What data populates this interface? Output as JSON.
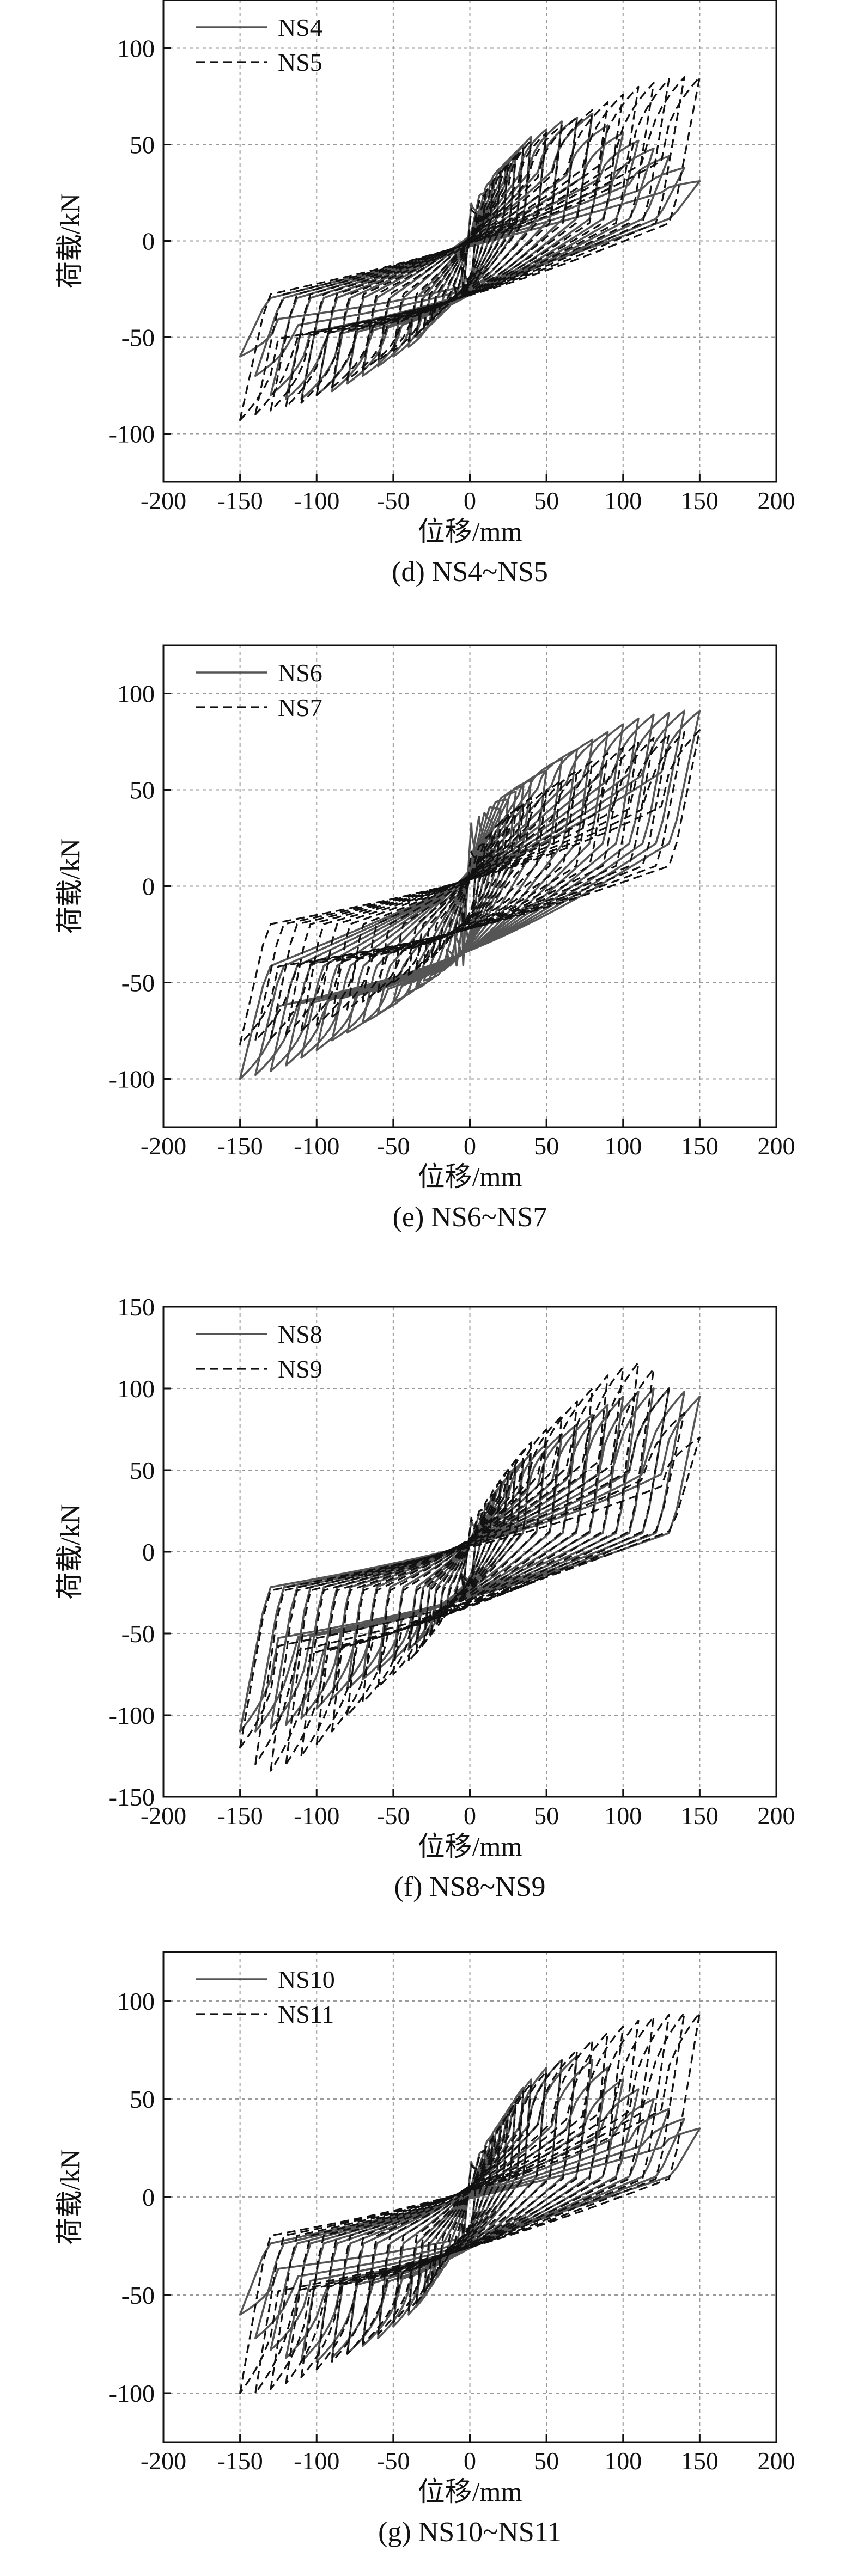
{
  "chart_data": [
    {
      "type": "line",
      "caption": "(d) NS4~NS5",
      "xlabel": "位移/mm",
      "ylabel": "荷载/kN",
      "xlim": [
        -200,
        200
      ],
      "ylim": [
        -125,
        125
      ],
      "xticks": [
        -200,
        -150,
        -100,
        -50,
        0,
        50,
        100,
        150,
        200
      ],
      "yticks": [
        -100,
        -50,
        0,
        50,
        100
      ],
      "grid": true,
      "legend_position": "top-left",
      "series": [
        {
          "name": "NS4",
          "style": "solid",
          "color": "#555555",
          "amplitudes": [
            5,
            10,
            15,
            20,
            25,
            30,
            35,
            40,
            50,
            60,
            70,
            80,
            90,
            100,
            110,
            120,
            130,
            140,
            150
          ],
          "peaks": [
            15,
            25,
            32,
            38,
            42,
            46,
            50,
            54,
            58,
            62,
            64,
            66,
            60,
            56,
            52,
            48,
            44,
            38,
            31
          ],
          "peaks_neg": [
            -15,
            -25,
            -32,
            -38,
            -42,
            -46,
            -50,
            -55,
            -60,
            -65,
            -70,
            -74,
            -78,
            -80,
            -82,
            -82,
            -80,
            -70,
            -60
          ],
          "shoulder": 22,
          "shoulder_neg": -30
        },
        {
          "name": "NS5",
          "style": "dashed",
          "color": "#111111",
          "amplitudes": [
            5,
            10,
            15,
            20,
            25,
            30,
            35,
            40,
            50,
            60,
            70,
            80,
            90,
            100,
            110,
            120,
            130,
            140,
            150
          ],
          "peaks": [
            14,
            24,
            30,
            36,
            40,
            44,
            48,
            52,
            56,
            60,
            64,
            68,
            72,
            76,
            80,
            82,
            84,
            85,
            85
          ],
          "peaks_neg": [
            -14,
            -24,
            -30,
            -36,
            -40,
            -44,
            -48,
            -52,
            -57,
            -62,
            -67,
            -72,
            -76,
            -80,
            -84,
            -86,
            -88,
            -90,
            -93
          ],
          "shoulder": 18,
          "shoulder_neg": -28
        }
      ]
    },
    {
      "type": "line",
      "caption": "(e) NS6~NS7",
      "xlabel": "位移/mm",
      "ylabel": "荷载/kN",
      "xlim": [
        -200,
        200
      ],
      "ylim": [
        -125,
        125
      ],
      "xticks": [
        -200,
        -150,
        -100,
        -50,
        0,
        50,
        100,
        150,
        200
      ],
      "yticks": [
        -100,
        -50,
        0,
        50,
        100
      ],
      "grid": true,
      "legend_position": "top-left",
      "series": [
        {
          "name": "NS6",
          "style": "solid",
          "color": "#555555",
          "amplitudes": [
            5,
            10,
            15,
            20,
            25,
            30,
            35,
            40,
            50,
            60,
            70,
            80,
            90,
            100,
            110,
            120,
            130,
            140,
            150
          ],
          "peaks": [
            15,
            25,
            33,
            40,
            45,
            49,
            52,
            55,
            60,
            66,
            71,
            76,
            80,
            84,
            87,
            89,
            90,
            91,
            91
          ],
          "peaks_neg": [
            -15,
            -25,
            -33,
            -40,
            -45,
            -49,
            -52,
            -55,
            -60,
            -66,
            -71,
            -76,
            -80,
            -85,
            -89,
            -93,
            -96,
            -98,
            -100
          ],
          "shoulder": 42,
          "shoulder_neg": -42
        },
        {
          "name": "NS7",
          "style": "dashed",
          "color": "#111111",
          "amplitudes": [
            5,
            10,
            15,
            20,
            25,
            30,
            35,
            40,
            50,
            60,
            70,
            80,
            90,
            100,
            110,
            120,
            130,
            140,
            150
          ],
          "peaks": [
            14,
            22,
            28,
            33,
            37,
            40,
            43,
            46,
            50,
            55,
            60,
            65,
            69,
            72,
            75,
            77,
            79,
            80,
            81
          ],
          "peaks_neg": [
            -14,
            -22,
            -28,
            -33,
            -37,
            -40,
            -43,
            -46,
            -50,
            -55,
            -60,
            -64,
            -68,
            -72,
            -75,
            -77,
            -79,
            -80,
            -82
          ],
          "shoulder": 20,
          "shoulder_neg": -20
        }
      ]
    },
    {
      "type": "line",
      "caption": "(f) NS8~NS9",
      "xlabel": "位移/mm",
      "ylabel": "荷载/kN",
      "xlim": [
        -200,
        200
      ],
      "ylim": [
        -150,
        150
      ],
      "xticks": [
        -200,
        -150,
        -100,
        -50,
        0,
        50,
        100,
        150,
        200
      ],
      "yticks": [
        -150,
        -100,
        -50,
        0,
        50,
        100,
        150
      ],
      "grid": true,
      "legend_position": "top-left",
      "series": [
        {
          "name": "NS8",
          "style": "solid",
          "color": "#555555",
          "amplitudes": [
            5,
            10,
            15,
            20,
            25,
            30,
            35,
            40,
            50,
            60,
            70,
            80,
            90,
            100,
            110,
            120,
            130,
            140,
            150
          ],
          "peaks": [
            14,
            24,
            32,
            40,
            46,
            52,
            56,
            60,
            66,
            72,
            78,
            84,
            90,
            95,
            98,
            100,
            100,
            98,
            95
          ],
          "peaks_neg": [
            -14,
            -24,
            -32,
            -40,
            -46,
            -52,
            -56,
            -60,
            -66,
            -72,
            -78,
            -84,
            -90,
            -96,
            -102,
            -106,
            -108,
            -110,
            -110
          ],
          "shoulder": 22,
          "shoulder_neg": -22
        },
        {
          "name": "NS9",
          "style": "dashed",
          "color": "#111111",
          "amplitudes": [
            5,
            10,
            15,
            20,
            25,
            30,
            35,
            40,
            50,
            60,
            70,
            80,
            90,
            100,
            110,
            120,
            130,
            140,
            150
          ],
          "peaks": [
            15,
            26,
            35,
            43,
            50,
            56,
            62,
            67,
            75,
            83,
            92,
            100,
            108,
            113,
            116,
            112,
            100,
            85,
            70
          ],
          "peaks_neg": [
            -15,
            -26,
            -35,
            -43,
            -50,
            -56,
            -62,
            -67,
            -75,
            -83,
            -92,
            -100,
            -110,
            -118,
            -125,
            -130,
            -134,
            -130,
            -120
          ],
          "shoulder": 24,
          "shoulder_neg": -24
        }
      ]
    },
    {
      "type": "line",
      "caption": "(g) NS10~NS11",
      "xlabel": "位移/mm",
      "ylabel": "荷载/kN",
      "xlim": [
        -200,
        200
      ],
      "ylim": [
        -125,
        125
      ],
      "xticks": [
        -200,
        -150,
        -100,
        -50,
        0,
        50,
        100,
        150,
        200
      ],
      "yticks": [
        -100,
        -50,
        0,
        50,
        100
      ],
      "grid": true,
      "legend_position": "top-left",
      "series": [
        {
          "name": "NS10",
          "style": "solid",
          "color": "#555555",
          "amplitudes": [
            5,
            10,
            15,
            20,
            25,
            30,
            35,
            40,
            50,
            60,
            70,
            80,
            90,
            100,
            110,
            120,
            130,
            140,
            150
          ],
          "peaks": [
            14,
            24,
            32,
            38,
            44,
            50,
            56,
            60,
            66,
            70,
            72,
            70,
            66,
            60,
            55,
            50,
            45,
            40,
            35
          ],
          "peaks_neg": [
            -14,
            -24,
            -32,
            -38,
            -44,
            -50,
            -56,
            -60,
            -66,
            -72,
            -76,
            -80,
            -82,
            -84,
            -84,
            -82,
            -78,
            -72,
            -60
          ],
          "shoulder": 20,
          "shoulder_neg": -24
        },
        {
          "name": "NS11",
          "style": "dashed",
          "color": "#111111",
          "amplitudes": [
            5,
            10,
            15,
            20,
            25,
            30,
            35,
            40,
            50,
            60,
            70,
            80,
            90,
            100,
            110,
            120,
            130,
            140,
            150
          ],
          "peaks": [
            14,
            24,
            30,
            36,
            42,
            48,
            54,
            58,
            64,
            70,
            75,
            80,
            84,
            87,
            90,
            92,
            93,
            94,
            94
          ],
          "peaks_neg": [
            -14,
            -24,
            -30,
            -36,
            -42,
            -48,
            -54,
            -58,
            -64,
            -70,
            -75,
            -80,
            -84,
            -88,
            -92,
            -95,
            -98,
            -100,
            -100
          ],
          "shoulder": 18,
          "shoulder_neg": -20
        }
      ]
    }
  ]
}
